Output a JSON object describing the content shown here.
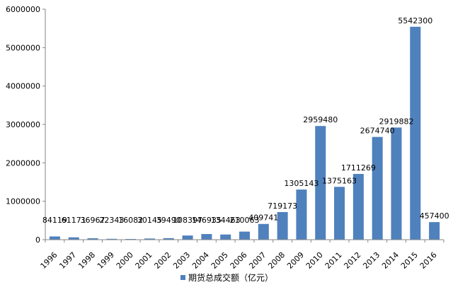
{
  "chart_data": {
    "type": "bar",
    "categories": [
      "1996",
      "1997",
      "1998",
      "1999",
      "2000",
      "2001",
      "2002",
      "2003",
      "2004",
      "2005",
      "2006",
      "2007",
      "2008",
      "2009",
      "2010",
      "2011",
      "2012",
      "2013",
      "2014",
      "2015",
      "2016"
    ],
    "series": [
      {
        "name": "期货总成交额（亿元）",
        "values": [
          84119,
          61171,
          36967,
          22343,
          16082,
          30145,
          39490,
          108397,
          146935,
          134463,
          210063,
          409741,
          719173,
          1305143,
          2959480,
          1375163,
          1711269,
          2674740,
          2919882,
          5542300,
          457400
        ],
        "labels": [
          "84119",
          "61171",
          "36967",
          "22343",
          "16082",
          "30145",
          "39490",
          "108397",
          "146935",
          "134463",
          "210063",
          "409741",
          "719173",
          "1305143",
          "2959480",
          "1375163",
          "1711269",
          "2674740",
          "2919882",
          "5542300",
          "457400"
        ]
      }
    ],
    "yticks": [
      "0",
      "1000000",
      "2000000",
      "3000000",
      "4000000",
      "5000000",
      "6000000"
    ],
    "ylim": [
      0,
      6000000
    ],
    "grid": false,
    "legend": "bottom",
    "bar_color": "#4F81BD"
  }
}
